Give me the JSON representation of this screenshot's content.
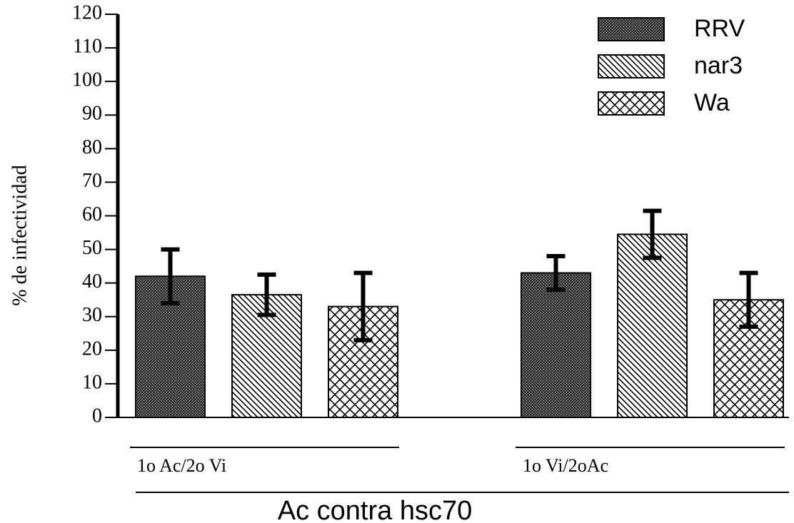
{
  "chart_data": {
    "type": "bar",
    "ylabel": "% de infectividad",
    "xlabel": "Ac contra hsc70",
    "categories": [
      "1o Ac/2o Vi",
      "1o Vi/2oAc"
    ],
    "series": [
      {
        "name": "RRV",
        "color": "#444444",
        "pattern": "dots",
        "values": [
          42,
          43
        ],
        "errors": [
          8,
          5
        ]
      },
      {
        "name": "nar3",
        "color": "#000000",
        "pattern": "diagonal",
        "values": [
          36.5,
          54.5
        ],
        "errors": [
          6,
          7
        ]
      },
      {
        "name": "Wa",
        "color": "#000000",
        "pattern": "crosshatch",
        "values": [
          33,
          35
        ],
        "errors": [
          10,
          8
        ]
      }
    ],
    "ylim": [
      0,
      120
    ],
    "yticks": [
      0,
      10,
      20,
      30,
      40,
      50,
      60,
      70,
      80,
      90,
      100,
      110,
      120
    ],
    "legend": "upper right"
  }
}
